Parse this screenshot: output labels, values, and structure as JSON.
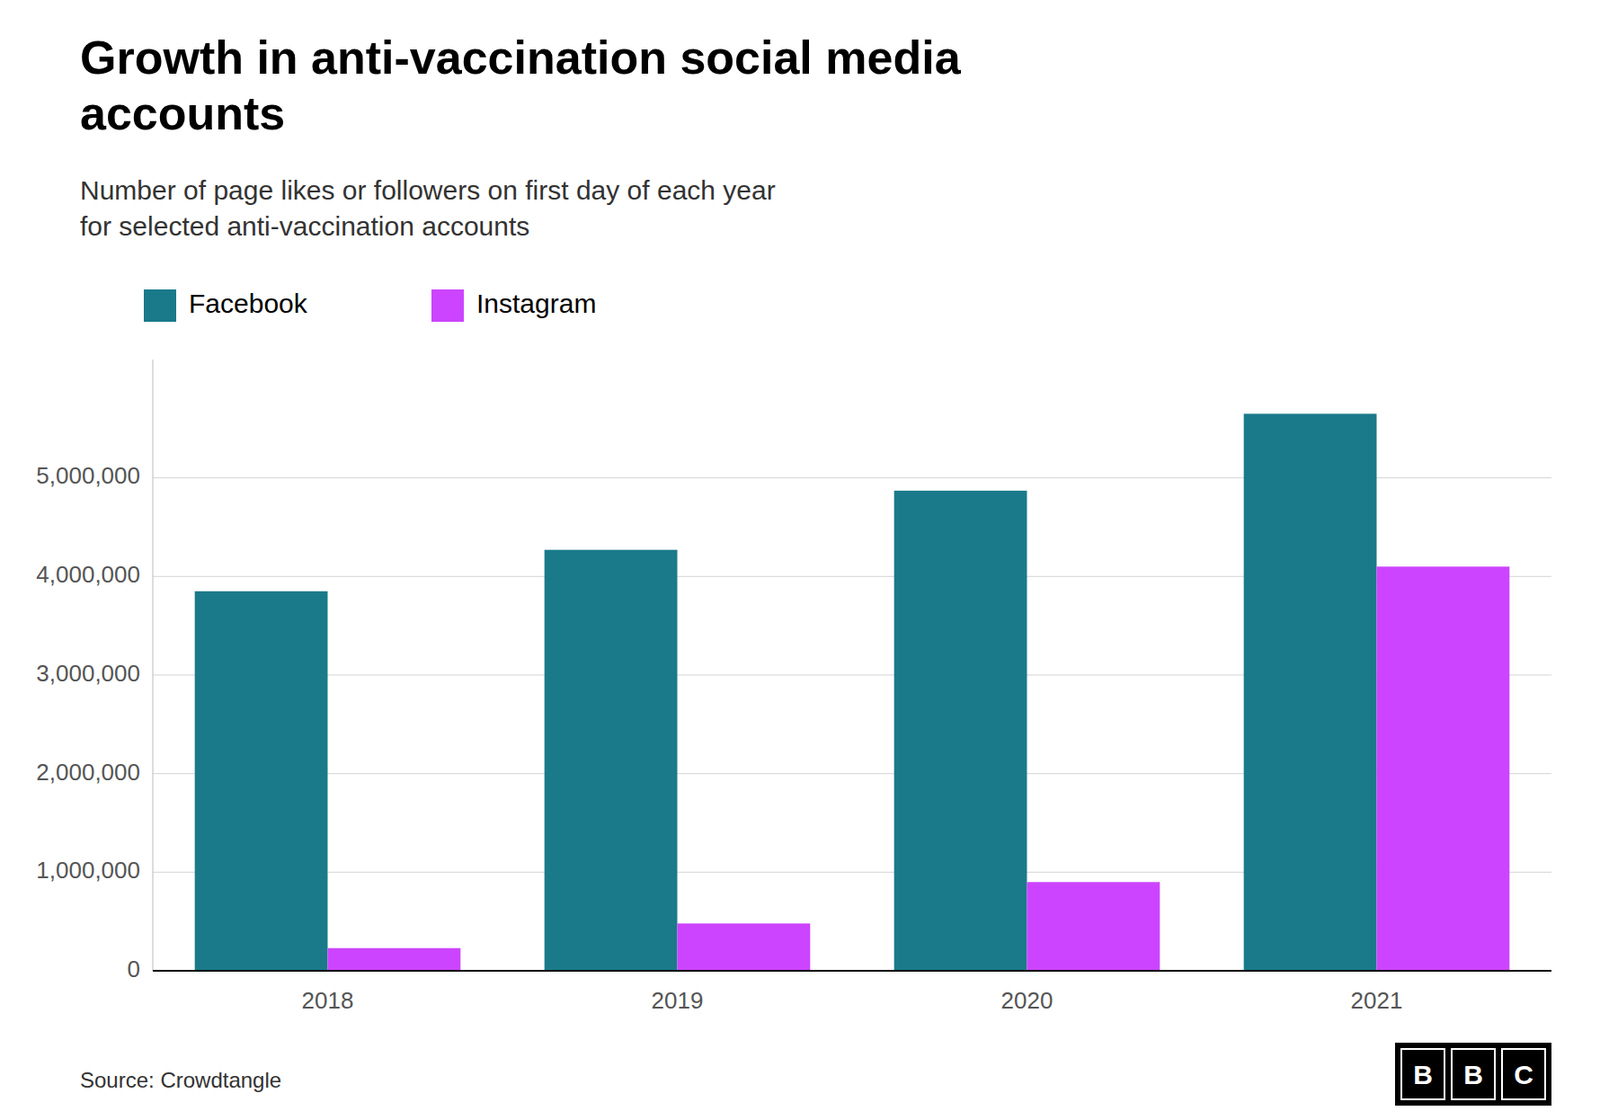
{
  "chart_data": {
    "type": "bar",
    "title": "Growth in anti-vaccination social media\naccounts",
    "subtitle": "Number of page likes or followers on first day of each year\nfor selected anti-vaccination accounts",
    "source": "Source: Crowdtangle",
    "logo": "BBC",
    "categories": [
      "2018",
      "2019",
      "2020",
      "2021"
    ],
    "series": [
      {
        "name": "Facebook",
        "color": "#1a7a8a",
        "values": [
          3850000,
          4270000,
          4870000,
          5650000
        ]
      },
      {
        "name": "Instagram",
        "color": "#cc44ff",
        "values": [
          230000,
          480000,
          900000,
          4100000
        ]
      }
    ],
    "ylim": [
      0,
      6200000
    ],
    "yticks": [
      0,
      {
        "value": 1000000,
        "label": "1,000,000"
      },
      {
        "value": 2000000,
        "label": "2,000,000"
      },
      {
        "value": 3000000,
        "label": "3,000,000"
      },
      {
        "value": 4000000,
        "label": "4,000,000"
      },
      {
        "value": 5000000,
        "label": "5,000,000"
      }
    ],
    "grid": true,
    "legend": "upper left"
  }
}
